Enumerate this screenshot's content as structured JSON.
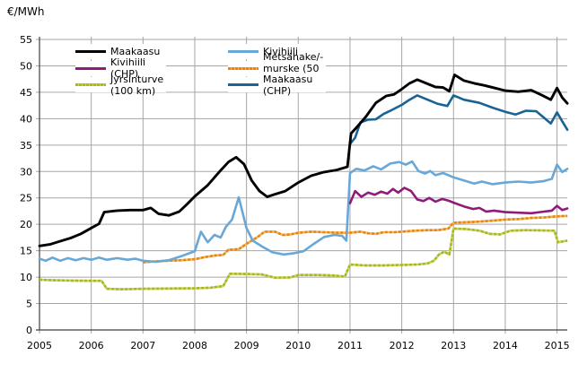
{
  "unit_label": "€/MWh",
  "colors": {
    "background": "#ffffff",
    "gridline": "#a6a6a6",
    "axis_line": "#3f3f3f",
    "tick_label": "#000000"
  },
  "chart_data": {
    "type": "line",
    "title": "",
    "xlabel": "",
    "ylabel": "€/MWh",
    "xlim": [
      2005,
      2015.25
    ],
    "ylim": [
      0,
      55
    ],
    "grid": true,
    "legend_position": "top-inside-two-columns",
    "y_ticks": [
      "0",
      "5",
      "10",
      "15",
      "20",
      "25",
      "30",
      "35",
      "40",
      "45",
      "50",
      "55"
    ],
    "y_tick_values": [
      0,
      5,
      10,
      15,
      20,
      25,
      30,
      35,
      40,
      45,
      50,
      55
    ],
    "x_ticks": [
      "2005",
      "2006",
      "2007",
      "2008",
      "2009",
      "2010",
      "2011",
      "2012",
      "2013",
      "2014",
      "2015"
    ],
    "x_tick_values": [
      2005,
      2006,
      2007,
      2008,
      2009,
      2010,
      2011,
      2012,
      2013,
      2014,
      2015
    ],
    "legend_columns": [
      [
        0,
        1,
        2
      ],
      [
        3,
        4,
        5
      ]
    ],
    "series": [
      {
        "name": "Maakaasu",
        "color": "#000000",
        "style": "solid",
        "points": [
          [
            2005.0,
            15.9
          ],
          [
            2005.2,
            16.2
          ],
          [
            2005.4,
            16.8
          ],
          [
            2005.6,
            17.4
          ],
          [
            2005.8,
            18.2
          ],
          [
            2006.0,
            19.3
          ],
          [
            2006.15,
            20.1
          ],
          [
            2006.25,
            22.3
          ],
          [
            2006.5,
            22.6
          ],
          [
            2006.75,
            22.7
          ],
          [
            2007.0,
            22.7
          ],
          [
            2007.15,
            23.1
          ],
          [
            2007.3,
            22.0
          ],
          [
            2007.5,
            21.7
          ],
          [
            2007.7,
            22.4
          ],
          [
            2007.85,
            23.8
          ],
          [
            2008.0,
            25.3
          ],
          [
            2008.25,
            27.4
          ],
          [
            2008.5,
            30.2
          ],
          [
            2008.65,
            31.8
          ],
          [
            2008.8,
            32.7
          ],
          [
            2008.95,
            31.4
          ],
          [
            2009.1,
            28.3
          ],
          [
            2009.25,
            26.3
          ],
          [
            2009.4,
            25.2
          ],
          [
            2009.55,
            25.7
          ],
          [
            2009.75,
            26.3
          ],
          [
            2010.0,
            27.9
          ],
          [
            2010.25,
            29.2
          ],
          [
            2010.5,
            29.9
          ],
          [
            2010.75,
            30.3
          ],
          [
            2010.95,
            30.9
          ],
          [
            2011.02,
            37.2
          ],
          [
            2011.15,
            38.6
          ],
          [
            2011.3,
            40.3
          ],
          [
            2011.5,
            43.0
          ],
          [
            2011.7,
            44.3
          ],
          [
            2011.85,
            44.6
          ],
          [
            2012.0,
            45.6
          ],
          [
            2012.15,
            46.7
          ],
          [
            2012.3,
            47.4
          ],
          [
            2012.5,
            46.6
          ],
          [
            2012.65,
            46.0
          ],
          [
            2012.8,
            45.9
          ],
          [
            2012.92,
            45.2
          ],
          [
            2013.02,
            48.3
          ],
          [
            2013.2,
            47.2
          ],
          [
            2013.4,
            46.7
          ],
          [
            2013.6,
            46.3
          ],
          [
            2013.8,
            45.8
          ],
          [
            2014.0,
            45.3
          ],
          [
            2014.25,
            45.1
          ],
          [
            2014.5,
            45.4
          ],
          [
            2014.7,
            44.5
          ],
          [
            2014.88,
            43.6
          ],
          [
            2015.0,
            45.8
          ],
          [
            2015.1,
            44.0
          ],
          [
            2015.2,
            42.9
          ]
        ]
      },
      {
        "name": "Kivihiili (CHP)",
        "color": "#8f1a7a",
        "style": "solid",
        "points": [
          [
            2011.0,
            24.0
          ],
          [
            2011.1,
            26.3
          ],
          [
            2011.22,
            25.2
          ],
          [
            2011.35,
            26.0
          ],
          [
            2011.48,
            25.6
          ],
          [
            2011.6,
            26.2
          ],
          [
            2011.72,
            25.8
          ],
          [
            2011.83,
            26.7
          ],
          [
            2011.93,
            26.0
          ],
          [
            2012.05,
            26.9
          ],
          [
            2012.18,
            26.3
          ],
          [
            2012.3,
            24.7
          ],
          [
            2012.42,
            24.4
          ],
          [
            2012.53,
            25.0
          ],
          [
            2012.65,
            24.3
          ],
          [
            2012.78,
            24.8
          ],
          [
            2012.9,
            24.5
          ],
          [
            2013.0,
            24.1
          ],
          [
            2013.2,
            23.4
          ],
          [
            2013.38,
            22.9
          ],
          [
            2013.5,
            23.1
          ],
          [
            2013.63,
            22.4
          ],
          [
            2013.78,
            22.6
          ],
          [
            2014.0,
            22.3
          ],
          [
            2014.25,
            22.2
          ],
          [
            2014.5,
            22.1
          ],
          [
            2014.75,
            22.4
          ],
          [
            2014.9,
            22.6
          ],
          [
            2015.0,
            23.5
          ],
          [
            2015.1,
            22.7
          ],
          [
            2015.2,
            23.0
          ]
        ]
      },
      {
        "name": "Jyrsinturve (100 km)",
        "color": "#a9ba16",
        "base_color": "#c9d277",
        "style": "dotted",
        "points": [
          [
            2005.0,
            9.5
          ],
          [
            2005.3,
            9.4
          ],
          [
            2005.6,
            9.35
          ],
          [
            2006.0,
            9.3
          ],
          [
            2006.2,
            9.3
          ],
          [
            2006.3,
            7.8
          ],
          [
            2006.6,
            7.7
          ],
          [
            2007.0,
            7.8
          ],
          [
            2007.5,
            7.85
          ],
          [
            2008.0,
            7.9
          ],
          [
            2008.3,
            8.0
          ],
          [
            2008.55,
            8.3
          ],
          [
            2008.68,
            10.65
          ],
          [
            2009.0,
            10.6
          ],
          [
            2009.3,
            10.5
          ],
          [
            2009.55,
            9.9
          ],
          [
            2009.85,
            9.95
          ],
          [
            2010.0,
            10.4
          ],
          [
            2010.4,
            10.4
          ],
          [
            2010.7,
            10.3
          ],
          [
            2010.9,
            10.1
          ],
          [
            2011.0,
            12.4
          ],
          [
            2011.3,
            12.2
          ],
          [
            2011.6,
            12.2
          ],
          [
            2012.0,
            12.3
          ],
          [
            2012.3,
            12.4
          ],
          [
            2012.5,
            12.6
          ],
          [
            2012.62,
            13.1
          ],
          [
            2012.72,
            14.3
          ],
          [
            2012.82,
            14.8
          ],
          [
            2012.92,
            14.3
          ],
          [
            2013.0,
            19.2
          ],
          [
            2013.25,
            19.1
          ],
          [
            2013.5,
            18.8
          ],
          [
            2013.7,
            18.2
          ],
          [
            2013.9,
            18.1
          ],
          [
            2014.1,
            18.8
          ],
          [
            2014.4,
            18.9
          ],
          [
            2014.7,
            18.85
          ],
          [
            2014.95,
            18.8
          ],
          [
            2015.02,
            16.6
          ],
          [
            2015.2,
            16.9
          ]
        ]
      },
      {
        "name": "Kivihiili",
        "color": "#68a8d8",
        "style": "solid",
        "points": [
          [
            2005.0,
            13.5
          ],
          [
            2005.12,
            13.1
          ],
          [
            2005.25,
            13.7
          ],
          [
            2005.4,
            13.1
          ],
          [
            2005.55,
            13.6
          ],
          [
            2005.7,
            13.2
          ],
          [
            2005.85,
            13.6
          ],
          [
            2006.0,
            13.3
          ],
          [
            2006.15,
            13.7
          ],
          [
            2006.3,
            13.3
          ],
          [
            2006.5,
            13.6
          ],
          [
            2006.7,
            13.3
          ],
          [
            2006.85,
            13.5
          ],
          [
            2007.0,
            13.1
          ],
          [
            2007.25,
            12.9
          ],
          [
            2007.5,
            13.2
          ],
          [
            2007.75,
            14.0
          ],
          [
            2008.0,
            14.9
          ],
          [
            2008.12,
            18.6
          ],
          [
            2008.25,
            16.6
          ],
          [
            2008.38,
            18.0
          ],
          [
            2008.5,
            17.5
          ],
          [
            2008.6,
            19.5
          ],
          [
            2008.72,
            20.9
          ],
          [
            2008.85,
            25.1
          ],
          [
            2009.0,
            19.3
          ],
          [
            2009.12,
            16.9
          ],
          [
            2009.3,
            15.8
          ],
          [
            2009.5,
            14.7
          ],
          [
            2009.72,
            14.3
          ],
          [
            2009.9,
            14.5
          ],
          [
            2010.1,
            14.9
          ],
          [
            2010.3,
            16.3
          ],
          [
            2010.5,
            17.6
          ],
          [
            2010.7,
            18.0
          ],
          [
            2010.85,
            17.8
          ],
          [
            2010.93,
            16.9
          ],
          [
            2011.0,
            29.7
          ],
          [
            2011.12,
            30.5
          ],
          [
            2011.28,
            30.2
          ],
          [
            2011.45,
            31.0
          ],
          [
            2011.6,
            30.4
          ],
          [
            2011.78,
            31.5
          ],
          [
            2011.95,
            31.8
          ],
          [
            2012.08,
            31.3
          ],
          [
            2012.2,
            31.9
          ],
          [
            2012.32,
            30.1
          ],
          [
            2012.45,
            29.6
          ],
          [
            2012.55,
            30.1
          ],
          [
            2012.65,
            29.3
          ],
          [
            2012.8,
            29.7
          ],
          [
            2013.0,
            28.9
          ],
          [
            2013.2,
            28.3
          ],
          [
            2013.4,
            27.7
          ],
          [
            2013.55,
            28.1
          ],
          [
            2013.75,
            27.6
          ],
          [
            2014.0,
            27.9
          ],
          [
            2014.25,
            28.1
          ],
          [
            2014.5,
            27.9
          ],
          [
            2014.75,
            28.2
          ],
          [
            2014.9,
            28.6
          ],
          [
            2015.0,
            31.3
          ],
          [
            2015.1,
            29.9
          ],
          [
            2015.2,
            30.5
          ]
        ]
      },
      {
        "name": "Metsähake/-murske (50 km)",
        "color": "#e8860c",
        "base_color": "#f4b86a",
        "style": "dotted",
        "points": [
          [
            2007.0,
            12.8
          ],
          [
            2007.25,
            13.0
          ],
          [
            2007.5,
            13.1
          ],
          [
            2007.75,
            13.2
          ],
          [
            2008.0,
            13.4
          ],
          [
            2008.2,
            13.8
          ],
          [
            2008.4,
            14.1
          ],
          [
            2008.55,
            14.2
          ],
          [
            2008.65,
            15.2
          ],
          [
            2008.85,
            15.3
          ],
          [
            2009.0,
            16.3
          ],
          [
            2009.2,
            17.5
          ],
          [
            2009.35,
            18.6
          ],
          [
            2009.55,
            18.6
          ],
          [
            2009.7,
            18.0
          ],
          [
            2009.85,
            18.1
          ],
          [
            2010.0,
            18.4
          ],
          [
            2010.25,
            18.6
          ],
          [
            2010.5,
            18.5
          ],
          [
            2010.75,
            18.4
          ],
          [
            2011.0,
            18.4
          ],
          [
            2011.2,
            18.6
          ],
          [
            2011.35,
            18.3
          ],
          [
            2011.5,
            18.2
          ],
          [
            2011.65,
            18.5
          ],
          [
            2011.85,
            18.5
          ],
          [
            2012.0,
            18.6
          ],
          [
            2012.25,
            18.8
          ],
          [
            2012.5,
            18.9
          ],
          [
            2012.7,
            18.9
          ],
          [
            2012.9,
            19.2
          ],
          [
            2013.0,
            20.3
          ],
          [
            2013.25,
            20.4
          ],
          [
            2013.5,
            20.5
          ],
          [
            2013.75,
            20.7
          ],
          [
            2014.0,
            20.9
          ],
          [
            2014.25,
            21.0
          ],
          [
            2014.5,
            21.2
          ],
          [
            2014.75,
            21.3
          ],
          [
            2015.0,
            21.5
          ],
          [
            2015.2,
            21.6
          ]
        ]
      },
      {
        "name": "Maakaasu (CHP)",
        "color": "#1a6395",
        "style": "solid",
        "points": [
          [
            2011.0,
            35.2
          ],
          [
            2011.1,
            36.4
          ],
          [
            2011.2,
            39.3
          ],
          [
            2011.35,
            39.8
          ],
          [
            2011.5,
            39.9
          ],
          [
            2011.65,
            40.9
          ],
          [
            2011.8,
            41.6
          ],
          [
            2012.0,
            42.6
          ],
          [
            2012.15,
            43.6
          ],
          [
            2012.3,
            44.4
          ],
          [
            2012.5,
            43.6
          ],
          [
            2012.7,
            42.8
          ],
          [
            2012.88,
            42.4
          ],
          [
            2013.0,
            44.4
          ],
          [
            2013.2,
            43.6
          ],
          [
            2013.5,
            43.0
          ],
          [
            2013.75,
            42.1
          ],
          [
            2014.0,
            41.3
          ],
          [
            2014.2,
            40.8
          ],
          [
            2014.4,
            41.5
          ],
          [
            2014.6,
            41.4
          ],
          [
            2014.88,
            39.1
          ],
          [
            2015.0,
            41.2
          ],
          [
            2015.1,
            39.5
          ],
          [
            2015.2,
            37.9
          ]
        ]
      }
    ]
  }
}
